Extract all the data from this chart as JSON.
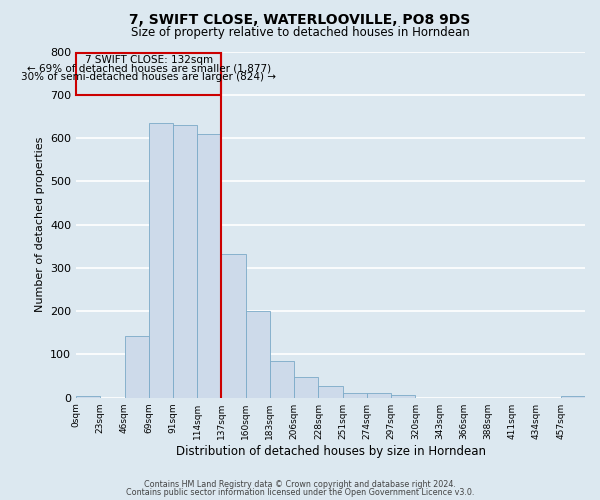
{
  "title": "7, SWIFT CLOSE, WATERLOOVILLE, PO8 9DS",
  "subtitle": "Size of property relative to detached houses in Horndean",
  "xlabel": "Distribution of detached houses by size in Horndean",
  "ylabel": "Number of detached properties",
  "bin_labels": [
    "0sqm",
    "23sqm",
    "46sqm",
    "69sqm",
    "91sqm",
    "114sqm",
    "137sqm",
    "160sqm",
    "183sqm",
    "206sqm",
    "228sqm",
    "251sqm",
    "274sqm",
    "297sqm",
    "320sqm",
    "343sqm",
    "366sqm",
    "388sqm",
    "411sqm",
    "434sqm",
    "457sqm"
  ],
  "bar_values": [
    5,
    0,
    143,
    635,
    630,
    610,
    333,
    200,
    84,
    47,
    26,
    11,
    11,
    7,
    0,
    0,
    0,
    0,
    0,
    0,
    5
  ],
  "bar_color": "#cddaea",
  "bar_edge_color": "#7baac8",
  "property_line_color": "#cc0000",
  "annotation_title": "7 SWIFT CLOSE: 132sqm",
  "annotation_line1": "← 69% of detached houses are smaller (1,877)",
  "annotation_line2": "30% of semi-detached houses are larger (824) →",
  "annotation_box_edge_color": "#cc0000",
  "ylim": [
    0,
    800
  ],
  "yticks": [
    0,
    100,
    200,
    300,
    400,
    500,
    600,
    700,
    800
  ],
  "footer1": "Contains HM Land Registry data © Crown copyright and database right 2024.",
  "footer2": "Contains public sector information licensed under the Open Government Licence v3.0.",
  "background_color": "#dce8f0",
  "grid_color": "#ffffff",
  "bin_width": 23
}
